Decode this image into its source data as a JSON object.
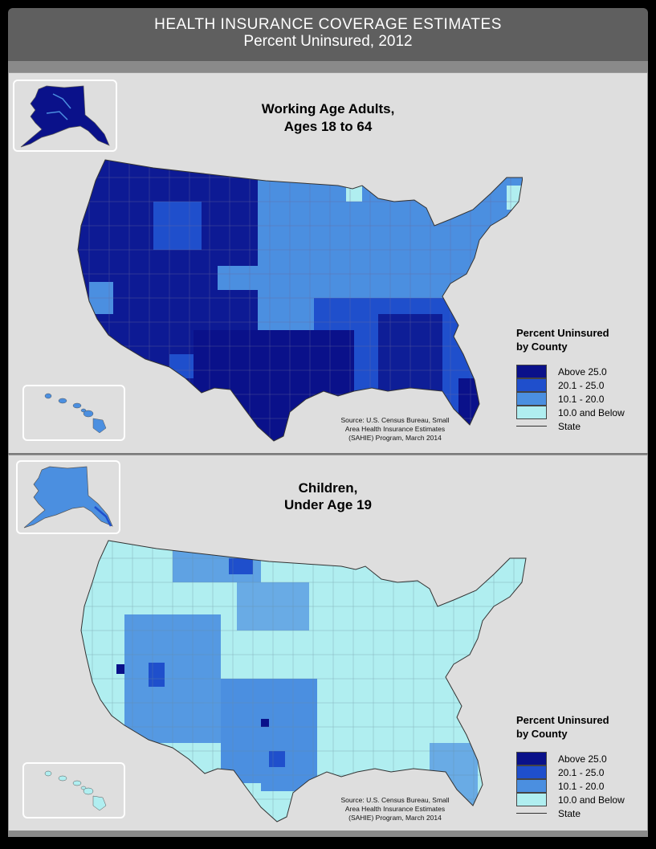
{
  "header": {
    "title_line1": "HEALTH INSURANCE COVERAGE ESTIMATES",
    "title_line2": "Percent Uninsured, 2012"
  },
  "colors": {
    "above_25": "#0a118a",
    "c20_25": "#1f4fcc",
    "c10_20": "#4b8fe0",
    "c10_below": "#b0eef0",
    "state_line": "#333333",
    "panel_bg": "#dedede",
    "header_bg": "#5f5f5f"
  },
  "panels": [
    {
      "title_line1": "Working Age Adults,",
      "title_line2": "Ages 18 to 64",
      "dominant_class": "mixed-high",
      "legend": {
        "title_line1": "Percent Uninsured",
        "title_line2": "by County",
        "items": [
          {
            "label": "Above 25.0",
            "color": "#0a118a"
          },
          {
            "label": "20.1 - 25.0",
            "color": "#1f4fcc"
          },
          {
            "label": "10.1 - 20.0",
            "color": "#4b8fe0"
          },
          {
            "label": "10.0 and Below",
            "color": "#b0eef0"
          }
        ],
        "state_label": "State"
      },
      "source": {
        "line1": "Source: U.S. Census Bureau, Small",
        "line2": "Area Health Insurance Estimates",
        "line3": "(SAHIE) Program, March 2014"
      }
    },
    {
      "title_line1": "Children,",
      "title_line2": "Under Age 19",
      "dominant_class": "mostly-low",
      "legend": {
        "title_line1": "Percent Uninsured",
        "title_line2": "by County",
        "items": [
          {
            "label": "Above 25.0",
            "color": "#0a118a"
          },
          {
            "label": "20.1 - 25.0",
            "color": "#1f4fcc"
          },
          {
            "label": "10.1 - 20.0",
            "color": "#4b8fe0"
          },
          {
            "label": "10.0 and Below",
            "color": "#b0eef0"
          }
        ],
        "state_label": "State"
      },
      "source": {
        "line1": "Source: U.S. Census Bureau, Small",
        "line2": "Area Health Insurance Estimates",
        "line3": "(SAHIE) Program, March 2014"
      }
    }
  ]
}
